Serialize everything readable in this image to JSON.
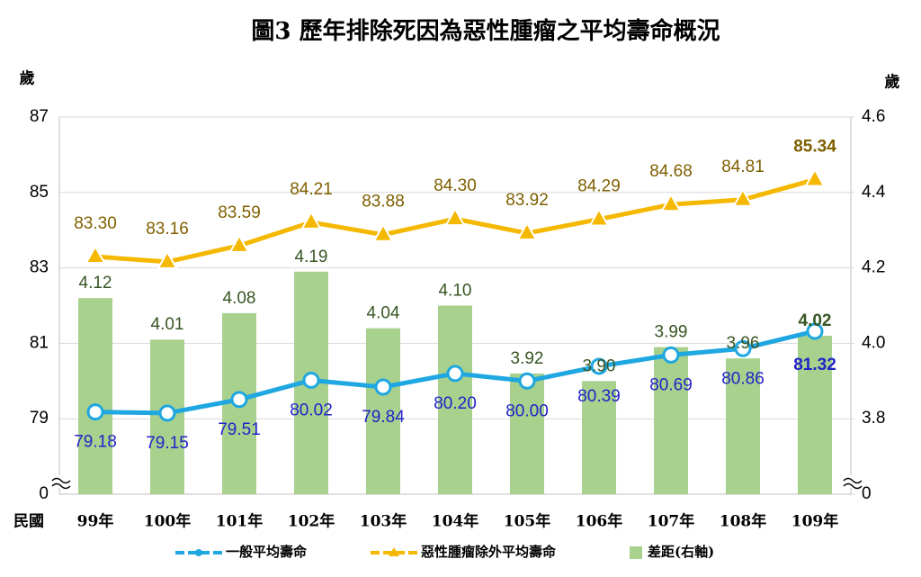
{
  "chart_data": {
    "type": "combo",
    "title": "圖3 歷年排除死因為惡性腫瘤之平均壽命概況",
    "x_label": "民國",
    "y_label": "歲",
    "y2_label": "歲",
    "axis_break": true,
    "categories": [
      "99年",
      "100年",
      "101年",
      "102年",
      "103年",
      "104年",
      "105年",
      "106年",
      "107年",
      "108年",
      "109年"
    ],
    "ylim": [
      77,
      87
    ],
    "yticks": [
      0,
      79,
      81,
      83,
      85,
      87
    ],
    "y2lim": [
      3.6,
      4.6
    ],
    "y2ticks": [
      0,
      {
        "value": 3.8,
        "label": "3.8"
      },
      {
        "value": 4.0,
        "label": "4.0"
      },
      {
        "value": 4.2,
        "label": "4.2"
      },
      {
        "value": 4.4,
        "label": "4.4"
      },
      {
        "value": 4.6,
        "label": "4.6"
      }
    ],
    "series": [
      {
        "name": "差距(右軸)",
        "type": "bar",
        "axis": "y2",
        "color": "#a9d18e",
        "label_color": "#375623",
        "values": [
          4.12,
          4.01,
          4.08,
          4.19,
          4.04,
          4.1,
          3.92,
          3.9,
          3.99,
          3.96,
          4.02
        ],
        "value_labels": [
          "4.12",
          "4.01",
          "4.08",
          "4.19",
          "4.04",
          "4.10",
          "3.92",
          "3.90",
          "3.99",
          "3.96",
          "4.02"
        ]
      },
      {
        "name": "一般平均壽命",
        "type": "line",
        "color": "#1ea7e1",
        "label_color": "#2222c8",
        "values": [
          79.18,
          79.15,
          79.51,
          80.02,
          79.84,
          80.2,
          80.0,
          80.39,
          80.69,
          80.86,
          81.32
        ],
        "value_labels": [
          "79.18",
          "79.15",
          "79.51",
          "80.02",
          "79.84",
          "80.20",
          "80.00",
          "80.39",
          "80.69",
          "80.86",
          "81.32"
        ]
      },
      {
        "name": "惡性腫瘤除外平均壽命",
        "type": "line",
        "color": "#f5b800",
        "label_color": "#7f6000",
        "values": [
          83.3,
          83.16,
          83.59,
          84.21,
          83.88,
          84.3,
          83.92,
          84.29,
          84.68,
          84.81,
          85.34
        ],
        "value_labels": [
          "83.30",
          "83.16",
          "83.59",
          "84.21",
          "83.88",
          "84.30",
          "83.92",
          "84.29",
          "84.68",
          "84.81",
          "85.34"
        ]
      }
    ]
  }
}
